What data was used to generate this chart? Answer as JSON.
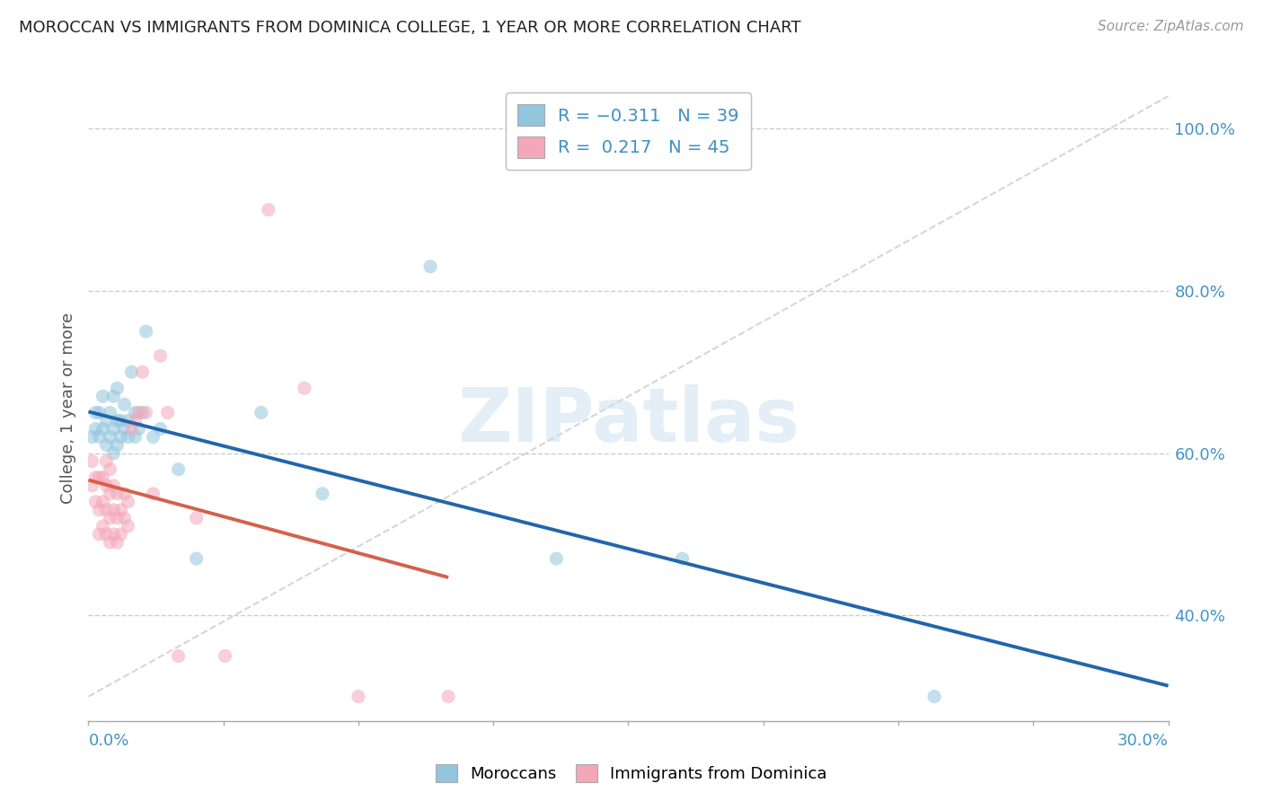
{
  "title": "MOROCCAN VS IMMIGRANTS FROM DOMINICA COLLEGE, 1 YEAR OR MORE CORRELATION CHART",
  "source": "Source: ZipAtlas.com",
  "ylabel_label": "College, 1 year or more",
  "legend_label1": "Moroccans",
  "legend_label2": "Immigrants from Dominica",
  "legend_r1": "-0.311",
  "legend_n1": "39",
  "legend_r2": "0.217",
  "legend_n2": "45",
  "color_blue": "#92c5de",
  "color_pink": "#f4a7b9",
  "color_blue_line": "#2166ac",
  "color_pink_line": "#d6604d",
  "color_diag": "#cccccc",
  "color_rvalue": "#4393c3",
  "color_title": "#222222",
  "color_source": "#999999",
  "xlim": [
    0.0,
    0.3
  ],
  "ylim": [
    0.27,
    1.04
  ],
  "y_ticks": [
    0.4,
    0.6,
    0.8,
    1.0
  ],
  "y_tick_labels": [
    "40.0%",
    "60.0%",
    "80.0%",
    "100.0%"
  ],
  "moroccan_x": [
    0.001,
    0.002,
    0.002,
    0.003,
    0.003,
    0.004,
    0.004,
    0.005,
    0.005,
    0.006,
    0.006,
    0.007,
    0.007,
    0.007,
    0.008,
    0.008,
    0.008,
    0.009,
    0.009,
    0.01,
    0.01,
    0.011,
    0.011,
    0.012,
    0.013,
    0.013,
    0.014,
    0.015,
    0.016,
    0.018,
    0.02,
    0.025,
    0.03,
    0.048,
    0.065,
    0.095,
    0.13,
    0.165,
    0.235
  ],
  "moroccan_y": [
    0.62,
    0.63,
    0.65,
    0.62,
    0.65,
    0.63,
    0.67,
    0.61,
    0.64,
    0.62,
    0.65,
    0.6,
    0.63,
    0.67,
    0.61,
    0.64,
    0.68,
    0.62,
    0.64,
    0.63,
    0.66,
    0.62,
    0.64,
    0.7,
    0.62,
    0.65,
    0.63,
    0.65,
    0.75,
    0.62,
    0.63,
    0.58,
    0.47,
    0.65,
    0.55,
    0.83,
    0.47,
    0.47,
    0.3
  ],
  "dominica_x": [
    0.001,
    0.001,
    0.002,
    0.002,
    0.003,
    0.003,
    0.003,
    0.004,
    0.004,
    0.004,
    0.005,
    0.005,
    0.005,
    0.005,
    0.006,
    0.006,
    0.006,
    0.006,
    0.007,
    0.007,
    0.007,
    0.008,
    0.008,
    0.008,
    0.009,
    0.009,
    0.01,
    0.01,
    0.011,
    0.011,
    0.012,
    0.013,
    0.014,
    0.015,
    0.016,
    0.018,
    0.02,
    0.022,
    0.025,
    0.03,
    0.038,
    0.05,
    0.06,
    0.075,
    0.1
  ],
  "dominica_y": [
    0.56,
    0.59,
    0.54,
    0.57,
    0.5,
    0.53,
    0.57,
    0.51,
    0.54,
    0.57,
    0.5,
    0.53,
    0.56,
    0.59,
    0.49,
    0.52,
    0.55,
    0.58,
    0.5,
    0.53,
    0.56,
    0.49,
    0.52,
    0.55,
    0.5,
    0.53,
    0.52,
    0.55,
    0.51,
    0.54,
    0.63,
    0.64,
    0.65,
    0.7,
    0.65,
    0.55,
    0.72,
    0.65,
    0.35,
    0.52,
    0.35,
    0.9,
    0.68,
    0.3,
    0.3
  ]
}
